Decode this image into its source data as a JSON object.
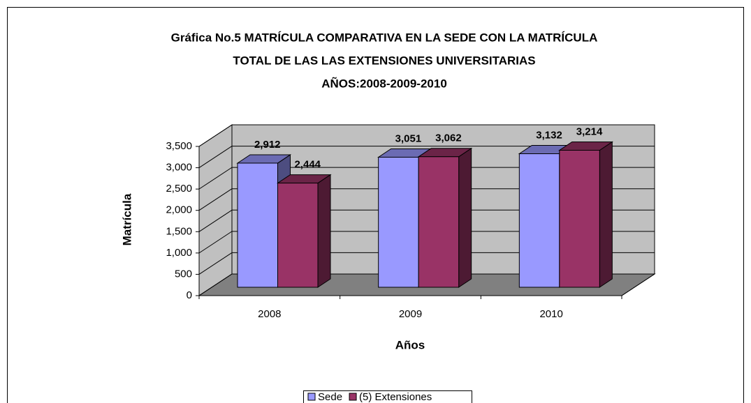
{
  "chart_data": {
    "type": "bar3d",
    "title": [
      "Gráfica No.5  MATRÍCULA COMPARATIVA EN LA SEDE CON LA  MATRÍCULA",
      "TOTAL DE LAS LAS EXTENSIONES UNIVERSITARIAS",
      "AÑOS:2008-2009-2010"
    ],
    "xlabel": "Años",
    "ylabel": "Matrícula",
    "categories": [
      "2008",
      "2009",
      "2010"
    ],
    "series": [
      {
        "name": "Sede",
        "color": "#9999ff",
        "values": [
          2912,
          3051,
          3132
        ],
        "value_labels": [
          "2,912",
          "3,051",
          "3,132"
        ]
      },
      {
        "name": "(5) Extensiones",
        "color": "#993366",
        "values": [
          2444,
          3062,
          3214
        ],
        "value_labels": [
          "2,444",
          "3,062",
          "3,214"
        ]
      }
    ],
    "ylim": [
      0,
      3500
    ],
    "yticks": [
      0,
      500,
      {
        "value": 1000,
        "label": "1,000"
      },
      {
        "value": 1500,
        "label": "1,500"
      },
      {
        "value": 2000,
        "label": "2,000"
      },
      {
        "value": 2500,
        "label": "2,500"
      },
      {
        "value": 3000,
        "label": "3,000"
      },
      {
        "value": 3500,
        "label": "3,500"
      }
    ],
    "grid": true,
    "legend": "bottom"
  }
}
